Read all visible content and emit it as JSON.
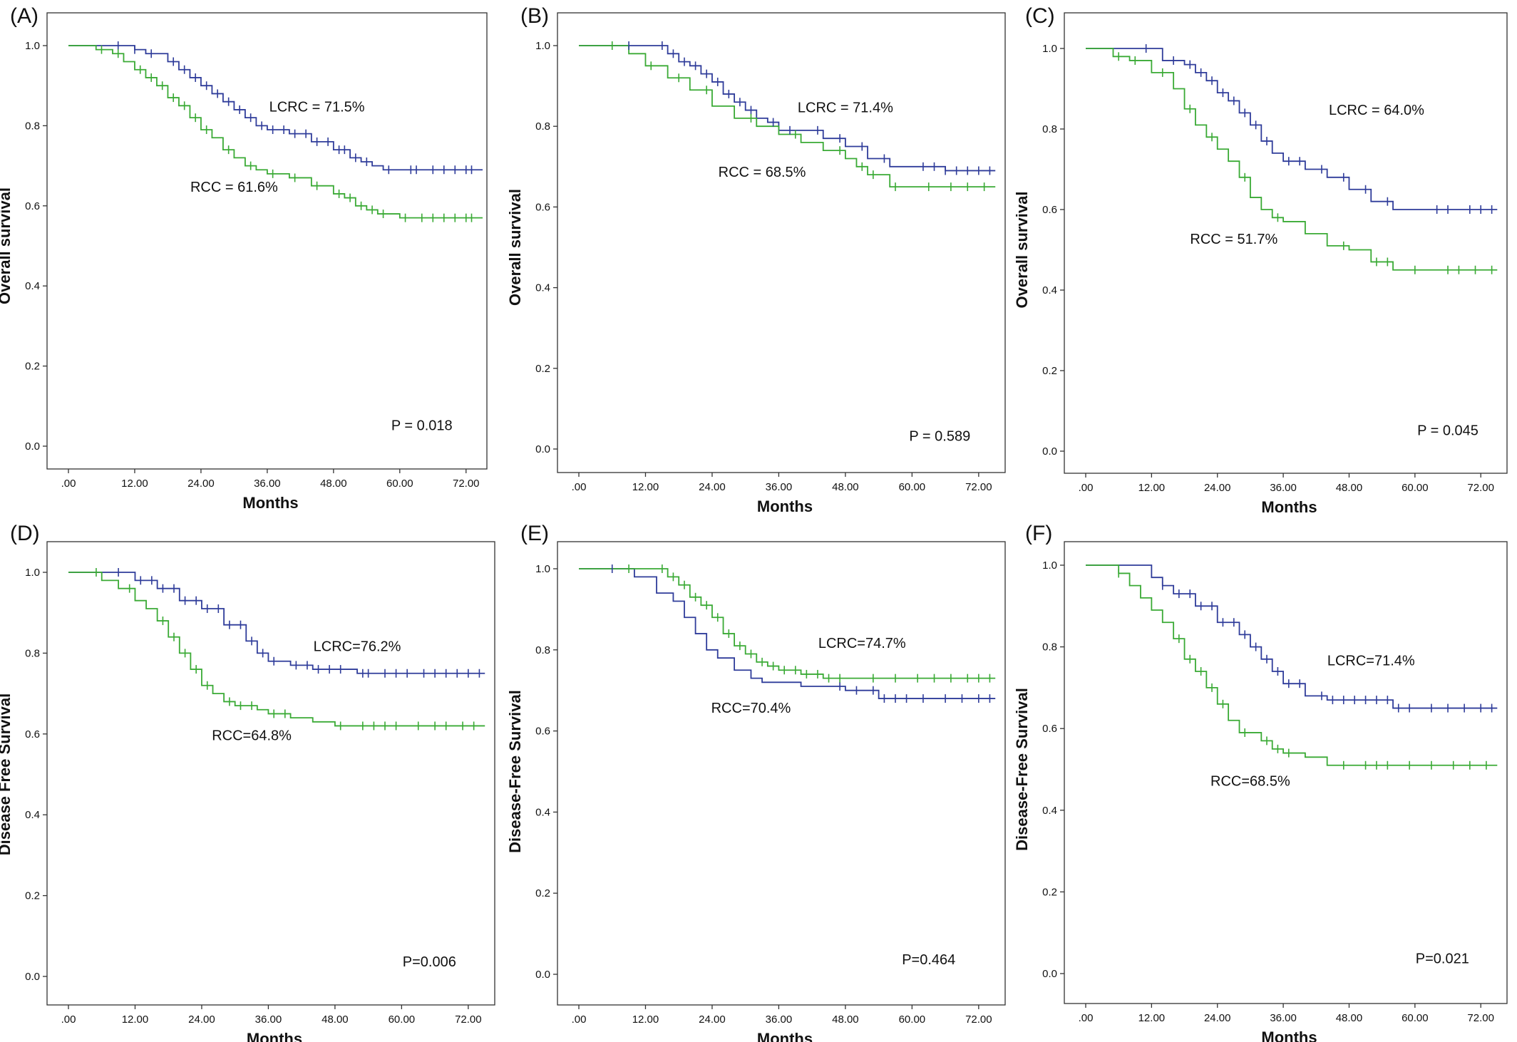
{
  "colors": {
    "lcrc": "#2f3c9a",
    "rcc": "#3aaa35"
  },
  "chart_data": [
    {
      "type": "line",
      "label": "(A)",
      "ylabel": "Overall survival",
      "xlabel": "Months",
      "xlim": [
        0,
        75
      ],
      "ylim": [
        0,
        1.0
      ],
      "xticks": [
        ".00",
        "12.00",
        "24.00",
        "36.00",
        "48.00",
        "60.00",
        "72.00"
      ],
      "yticks": [
        "0.0",
        "0.2",
        "0.4",
        "0.6",
        "0.8",
        "1.0"
      ],
      "annotations": [
        {
          "text": "LCRC = 71.5%",
          "x": 45,
          "y": 0.835
        },
        {
          "text": "RCC = 61.6%",
          "x": 30,
          "y": 0.635
        }
      ],
      "pvalue": {
        "text": "P = 0.018",
        "x": 64,
        "y": 0.04
      },
      "series": [
        {
          "key": "lcrc",
          "x": [
            0,
            8,
            12,
            14,
            18,
            20,
            22,
            24,
            26,
            28,
            30,
            32,
            34,
            36,
            40,
            44,
            48,
            51,
            53,
            55,
            57,
            75
          ],
          "y": [
            1.0,
            1.0,
            0.99,
            0.98,
            0.96,
            0.94,
            0.92,
            0.9,
            0.88,
            0.86,
            0.84,
            0.82,
            0.8,
            0.79,
            0.78,
            0.76,
            0.74,
            0.72,
            0.71,
            0.7,
            0.69,
            0.69
          ]
        },
        {
          "key": "rcc",
          "x": [
            0,
            5,
            8,
            10,
            12,
            14,
            16,
            18,
            20,
            22,
            24,
            26,
            28,
            30,
            32,
            34,
            36,
            40,
            44,
            48,
            50,
            52,
            54,
            56,
            60,
            75
          ],
          "y": [
            1.0,
            0.99,
            0.98,
            0.96,
            0.94,
            0.92,
            0.9,
            0.87,
            0.85,
            0.82,
            0.79,
            0.77,
            0.74,
            0.72,
            0.7,
            0.69,
            0.68,
            0.67,
            0.65,
            0.63,
            0.62,
            0.6,
            0.59,
            0.58,
            0.57,
            0.57
          ]
        }
      ],
      "censors": [
        {
          "key": "lcrc",
          "x": [
            9,
            12,
            15,
            19,
            21,
            23,
            25,
            27,
            29,
            31,
            33,
            35,
            37,
            39,
            41,
            43,
            45,
            47,
            49,
            50,
            52,
            54,
            58,
            62,
            63,
            66,
            68,
            70,
            72,
            73
          ]
        },
        {
          "key": "rcc",
          "x": [
            6,
            9,
            13,
            15,
            17,
            19,
            21,
            23,
            25,
            29,
            33,
            37,
            41,
            45,
            49,
            51,
            53,
            55,
            57,
            61,
            64,
            66,
            68,
            70,
            72,
            73
          ]
        }
      ]
    },
    {
      "type": "line",
      "label": "(B)",
      "ylabel": "Overall survival",
      "xlabel": "Months",
      "xlim": [
        0,
        76
      ],
      "ylim": [
        0,
        1.0
      ],
      "xticks": [
        ".00",
        "12.00",
        "24.00",
        "36.00",
        "48.00",
        "60.00",
        "72.00"
      ],
      "yticks": [
        "0.0",
        "0.2",
        "0.4",
        "0.6",
        "0.8",
        "1.0"
      ],
      "annotations": [
        {
          "text": "LCRC = 71.4%",
          "x": 48,
          "y": 0.835
        },
        {
          "text": "RCC = 68.5%",
          "x": 33,
          "y": 0.675
        }
      ],
      "pvalue": {
        "text": "P = 0.589",
        "x": 65,
        "y": 0.02
      },
      "series": [
        {
          "key": "lcrc",
          "x": [
            0,
            14,
            16,
            18,
            20,
            22,
            24,
            26,
            28,
            30,
            32,
            34,
            36,
            40,
            44,
            48,
            52,
            56,
            60,
            66,
            75
          ],
          "y": [
            1.0,
            1.0,
            0.98,
            0.96,
            0.95,
            0.93,
            0.91,
            0.88,
            0.86,
            0.84,
            0.82,
            0.81,
            0.79,
            0.79,
            0.77,
            0.75,
            0.72,
            0.7,
            0.7,
            0.69,
            0.69
          ]
        },
        {
          "key": "rcc",
          "x": [
            0,
            9,
            12,
            16,
            20,
            24,
            28,
            32,
            36,
            40,
            44,
            48,
            50,
            52,
            56,
            60,
            75
          ],
          "y": [
            1.0,
            0.98,
            0.95,
            0.92,
            0.89,
            0.85,
            0.82,
            0.8,
            0.78,
            0.76,
            0.74,
            0.72,
            0.7,
            0.68,
            0.65,
            0.65,
            0.65
          ]
        }
      ],
      "censors": [
        {
          "key": "lcrc",
          "x": [
            9,
            15,
            17,
            19,
            21,
            23,
            25,
            27,
            29,
            31,
            35,
            38,
            43,
            47,
            51,
            55,
            62,
            64,
            66,
            68,
            70,
            72,
            74
          ]
        },
        {
          "key": "rcc",
          "x": [
            6,
            13,
            18,
            23,
            31,
            39,
            47,
            51,
            53,
            57,
            63,
            67,
            70,
            73
          ]
        }
      ]
    },
    {
      "type": "line",
      "label": "(C)",
      "ylabel": "Overall survival",
      "xlabel": "Months",
      "xlim": [
        0,
        76
      ],
      "ylim": [
        0,
        1.0
      ],
      "xticks": [
        ".00",
        "12.00",
        "24.00",
        "36.00",
        "48.00",
        "60.00",
        "72.00"
      ],
      "yticks": [
        "0.0",
        "0.2",
        "0.4",
        "0.6",
        "0.8",
        "1.0"
      ],
      "annotations": [
        {
          "text": "LCRC = 64.0%",
          "x": 53,
          "y": 0.835
        },
        {
          "text": "RCC = 51.7%",
          "x": 27,
          "y": 0.515
        }
      ],
      "pvalue": {
        "text": "P = 0.045",
        "x": 66,
        "y": 0.04
      },
      "series": [
        {
          "key": "lcrc",
          "x": [
            0,
            8,
            14,
            18,
            20,
            22,
            24,
            26,
            28,
            30,
            32,
            34,
            36,
            40,
            44,
            48,
            52,
            56,
            60,
            75
          ],
          "y": [
            1.0,
            1.0,
            0.97,
            0.96,
            0.94,
            0.92,
            0.89,
            0.87,
            0.84,
            0.81,
            0.77,
            0.74,
            0.72,
            0.7,
            0.68,
            0.65,
            0.62,
            0.6,
            0.6,
            0.6
          ]
        },
        {
          "key": "rcc",
          "x": [
            0,
            5,
            8,
            12,
            16,
            18,
            20,
            22,
            24,
            26,
            28,
            30,
            32,
            34,
            36,
            40,
            44,
            48,
            52,
            56,
            60,
            75
          ],
          "y": [
            1.0,
            0.98,
            0.97,
            0.94,
            0.9,
            0.85,
            0.81,
            0.78,
            0.75,
            0.72,
            0.68,
            0.63,
            0.6,
            0.58,
            0.57,
            0.54,
            0.51,
            0.5,
            0.47,
            0.45,
            0.45,
            0.45
          ]
        }
      ],
      "censors": [
        {
          "key": "lcrc",
          "x": [
            11,
            16,
            19,
            21,
            23,
            25,
            27,
            29,
            31,
            33,
            37,
            39,
            43,
            47,
            51,
            55,
            64,
            66,
            70,
            72,
            74
          ]
        },
        {
          "key": "rcc",
          "x": [
            6,
            9,
            14,
            19,
            23,
            29,
            35,
            47,
            53,
            55,
            60,
            66,
            68,
            71,
            74
          ]
        }
      ]
    },
    {
      "type": "line",
      "label": "(D)",
      "ylabel": "Disease Free Survival",
      "xlabel": "Months",
      "xlim": [
        0,
        76
      ],
      "ylim": [
        0,
        1.0
      ],
      "xticks": [
        ".00",
        "12.00",
        "24.00",
        "36.00",
        "48.00",
        "60.00",
        "72.00"
      ],
      "yticks": [
        "0.0",
        "0.2",
        "0.4",
        "0.6",
        "0.8",
        "1.0"
      ],
      "annotations": [
        {
          "text": "LCRC=76.2%",
          "x": 52,
          "y": 0.805
        },
        {
          "text": "RCC=64.8%",
          "x": 33,
          "y": 0.585
        }
      ],
      "pvalue": {
        "text": "P=0.006",
        "x": 65,
        "y": 0.025
      },
      "series": [
        {
          "key": "lcrc",
          "x": [
            0,
            8,
            12,
            16,
            20,
            24,
            28,
            32,
            34,
            36,
            40,
            44,
            48,
            52,
            56,
            75
          ],
          "y": [
            1.0,
            1.0,
            0.98,
            0.96,
            0.93,
            0.91,
            0.87,
            0.83,
            0.8,
            0.78,
            0.77,
            0.76,
            0.76,
            0.75,
            0.75,
            0.75
          ]
        },
        {
          "key": "rcc",
          "x": [
            0,
            6,
            9,
            12,
            14,
            16,
            18,
            20,
            22,
            24,
            26,
            28,
            30,
            34,
            36,
            40,
            44,
            48,
            52,
            56,
            60,
            75
          ],
          "y": [
            1.0,
            0.98,
            0.96,
            0.93,
            0.91,
            0.88,
            0.84,
            0.8,
            0.76,
            0.72,
            0.7,
            0.68,
            0.67,
            0.66,
            0.65,
            0.64,
            0.63,
            0.62,
            0.62,
            0.62,
            0.62,
            0.62
          ]
        }
      ],
      "censors": [
        {
          "key": "lcrc",
          "x": [
            9,
            13,
            15,
            17,
            19,
            21,
            23,
            25,
            27,
            29,
            31,
            33,
            35,
            37,
            41,
            43,
            45,
            47,
            49,
            53,
            54,
            57,
            59,
            61,
            64,
            66,
            68,
            70,
            72,
            74
          ]
        },
        {
          "key": "rcc",
          "x": [
            5,
            11,
            17,
            19,
            21,
            23,
            25,
            29,
            31,
            33,
            37,
            39,
            49,
            53,
            55,
            57,
            59,
            63,
            66,
            68,
            71,
            73
          ]
        }
      ]
    },
    {
      "type": "line",
      "label": "(E)",
      "ylabel": "Disease-Free Survival",
      "xlabel": "Months",
      "xlim": [
        0,
        76
      ],
      "ylim": [
        0,
        1.0
      ],
      "xticks": [
        ".00",
        "12.00",
        "24.00",
        "36.00",
        "48.00",
        "60.00",
        "72.00"
      ],
      "yticks": [
        "0.0",
        "0.2",
        "0.4",
        "0.6",
        "0.8",
        "1.0"
      ],
      "annotations": [
        {
          "text": "LCRC=74.7%",
          "x": 51,
          "y": 0.805
        },
        {
          "text": "RCC=70.4%",
          "x": 31,
          "y": 0.645
        }
      ],
      "pvalue": {
        "text": "P=0.464",
        "x": 63,
        "y": 0.025
      },
      "series": [
        {
          "key": "lcrc",
          "x": [
            0,
            8,
            10,
            14,
            17,
            19,
            21,
            23,
            25,
            28,
            31,
            33,
            36,
            40,
            48,
            54,
            60,
            75
          ],
          "y": [
            1.0,
            1.0,
            0.98,
            0.94,
            0.92,
            0.88,
            0.84,
            0.8,
            0.78,
            0.75,
            0.73,
            0.72,
            0.72,
            0.71,
            0.7,
            0.68,
            0.68,
            0.68
          ]
        },
        {
          "key": "rcc",
          "x": [
            0,
            14,
            16,
            18,
            20,
            22,
            24,
            26,
            28,
            30,
            32,
            34,
            36,
            40,
            44,
            48,
            52,
            56,
            60,
            75
          ],
          "y": [
            1.0,
            1.0,
            0.98,
            0.96,
            0.93,
            0.91,
            0.88,
            0.84,
            0.81,
            0.79,
            0.77,
            0.76,
            0.75,
            0.74,
            0.73,
            0.73,
            0.73,
            0.73,
            0.73,
            0.73
          ]
        }
      ],
      "censors": [
        {
          "key": "lcrc",
          "x": [
            6,
            47,
            50,
            53,
            55,
            57,
            59,
            62,
            66,
            69,
            72,
            74
          ]
        },
        {
          "key": "rcc",
          "x": [
            9,
            15,
            17,
            19,
            21,
            23,
            25,
            27,
            29,
            31,
            33,
            35,
            37,
            39,
            41,
            43,
            45,
            47,
            53,
            57,
            61,
            64,
            67,
            70,
            72,
            74
          ]
        }
      ]
    },
    {
      "type": "line",
      "label": "(F)",
      "ylabel": "Disease-Free Survival",
      "xlabel": "Months",
      "xlim": [
        0,
        76
      ],
      "ylim": [
        0,
        1.0
      ],
      "xticks": [
        ".00",
        "12.00",
        "24.00",
        "36.00",
        "48.00",
        "60.00",
        "72.00"
      ],
      "yticks": [
        "0.0",
        "0.2",
        "0.4",
        "0.6",
        "0.8",
        "1.0"
      ],
      "annotations": [
        {
          "text": "LCRC=71.4%",
          "x": 52,
          "y": 0.755
        },
        {
          "text": "RCC=68.5%",
          "x": 30,
          "y": 0.46
        }
      ],
      "pvalue": {
        "text": "P=0.021",
        "x": 65,
        "y": 0.025
      },
      "series": [
        {
          "key": "lcrc",
          "x": [
            0,
            8,
            12,
            14,
            16,
            20,
            24,
            28,
            30,
            32,
            34,
            36,
            40,
            44,
            48,
            56,
            75
          ],
          "y": [
            1.0,
            1.0,
            0.97,
            0.95,
            0.93,
            0.9,
            0.86,
            0.83,
            0.8,
            0.77,
            0.74,
            0.71,
            0.68,
            0.67,
            0.67,
            0.65,
            0.65
          ]
        },
        {
          "key": "rcc",
          "x": [
            0,
            6,
            8,
            10,
            12,
            14,
            16,
            18,
            20,
            22,
            24,
            26,
            28,
            32,
            34,
            36,
            40,
            44,
            48,
            60,
            75
          ],
          "y": [
            1.0,
            0.98,
            0.95,
            0.92,
            0.89,
            0.86,
            0.82,
            0.77,
            0.74,
            0.7,
            0.66,
            0.62,
            0.59,
            0.57,
            0.55,
            0.54,
            0.53,
            0.51,
            0.51,
            0.51,
            0.51
          ]
        }
      ],
      "censors": [
        {
          "key": "lcrc",
          "x": [
            14,
            17,
            19,
            21,
            23,
            25,
            27,
            29,
            31,
            33,
            35,
            37,
            39,
            43,
            45,
            47,
            49,
            51,
            53,
            55,
            57,
            59,
            63,
            66,
            69,
            72,
            74
          ]
        },
        {
          "key": "rcc",
          "x": [
            6,
            17,
            19,
            21,
            23,
            25,
            29,
            33,
            35,
            37,
            47,
            51,
            53,
            55,
            59,
            63,
            67,
            70,
            73
          ]
        }
      ]
    }
  ]
}
